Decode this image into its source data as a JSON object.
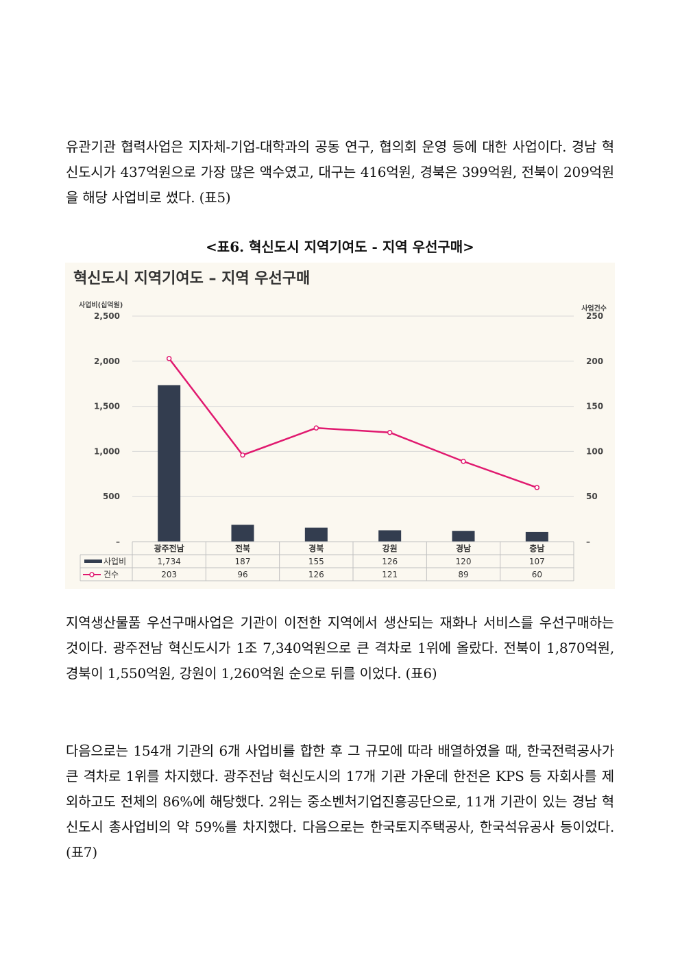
{
  "paragraphs": {
    "p1": "유관기관 협력사업은 지자체-기업-대학과의 공동 연구, 협의회 운영 등에 대한 사업이다. 경남 혁신도시가 437억원으로 가장 많은 액수였고, 대구는 416억원, 경북은 399억원, 전북이 209억원을 해당 사업비로 썼다. (표5)",
    "p2": "지역생산물품 우선구매사업은 기관이 이전한 지역에서 생산되는 재화나 서비스를 우선구매하는 것이다. 광주전남 혁신도시가 1조 7,340억원으로 큰 격차로 1위에 올랐다. 전북이 1,870억원, 경북이 1,550억원, 강원이 1,260억원 순으로 뒤를 이었다. (표6)",
    "p3": "다음으로는 154개 기관의 6개 사업비를 합한 후 그 규모에 따라 배열하였을 때, 한국전력공사가 큰 격차로 1위를 차지했다. 광주전남 혁신도시의 17개 기관 가운데 한전은 KPS 등 자회사를 제외하고도 전체의 86%에 해당했다. 2위는 중소벤처기업진흥공단으로, 11개 기관이 있는 경남 혁신도시 총사업비의 약 59%를 차지했다. 다음으로는 한국토지주택공사, 한국석유공사 등이었다. (표7)"
  },
  "caption": "<표6. 혁신도시 지역기여도 - 지역 우선구매>",
  "chart_data": {
    "type": "bar",
    "title": "혁신도시 지역기여도 – 지역 우선구매",
    "ylabel": "사업비(십억원)",
    "y2label": "사업건수",
    "ylim": [
      0,
      2500
    ],
    "y2lim": [
      0,
      250
    ],
    "yticks": [
      "–",
      "500",
      "1,000",
      "1,500",
      "2,000",
      "2,500"
    ],
    "y2ticks": [
      "–",
      "50",
      "100",
      "150",
      "200",
      "250"
    ],
    "categories": [
      "광주전남",
      "전북",
      "경북",
      "강원",
      "경남",
      "충남"
    ],
    "series": [
      {
        "name": "사업비",
        "kind": "bar",
        "axis": "left",
        "color": "#333d4f",
        "values": [
          1734,
          187,
          155,
          126,
          120,
          107
        ],
        "labels": [
          "1,734",
          "187",
          "155",
          "126",
          "120",
          "107"
        ]
      },
      {
        "name": "건수",
        "kind": "line",
        "axis": "right",
        "color": "#e0196f",
        "values": [
          203,
          96,
          126,
          121,
          89,
          60
        ],
        "labels": [
          "203",
          "96",
          "126",
          "121",
          "89",
          "60"
        ]
      }
    ],
    "grid": true,
    "legend": "table-bottom"
  }
}
